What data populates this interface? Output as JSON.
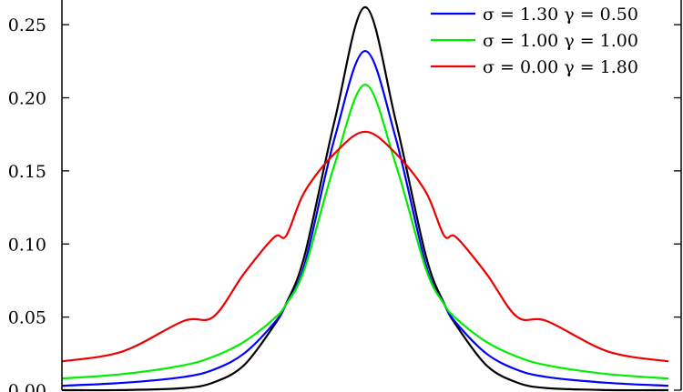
{
  "chart_data": {
    "type": "line",
    "title": "",
    "xlabel": "",
    "ylabel": "",
    "ylim": [
      0,
      0.27
    ],
    "xlim": [
      -5,
      5
    ],
    "grid": false,
    "legend_position": "top-right",
    "y_ticks": [
      "0.00",
      "0.05",
      "0.10",
      "0.15",
      "0.20",
      "0.25"
    ],
    "y_tick_values": [
      0,
      0.05,
      0.1,
      0.15,
      0.2,
      0.25
    ],
    "series": [
      {
        "legend": "",
        "color": "#000000",
        "peak": 0.262,
        "x": [
          -5,
          -4,
          -3,
          -2.5,
          -2,
          -1.5,
          -1.3,
          -1,
          -0.5,
          0,
          0.5,
          1,
          1.3,
          1.5,
          2,
          2.5,
          3,
          4,
          5
        ],
        "y": [
          0.0,
          0.0001,
          0.0014,
          0.0053,
          0.017,
          0.0445,
          0.0595,
          0.092,
          0.185,
          0.262,
          0.185,
          0.092,
          0.0595,
          0.0445,
          0.017,
          0.0053,
          0.0014,
          0.0001,
          0.0
        ]
      },
      {
        "legend": "σ = 1.30   γ = 0.50",
        "color": "#0000ff",
        "x": [
          -5,
          -4,
          -3,
          -2.5,
          -2,
          -1.5,
          -1.3,
          -1,
          -0.5,
          0,
          0.5,
          1,
          1.3,
          1.5,
          2,
          2.5,
          3,
          4,
          5
        ],
        "y": [
          0.003,
          0.005,
          0.009,
          0.014,
          0.025,
          0.046,
          0.059,
          0.086,
          0.173,
          0.232,
          0.173,
          0.086,
          0.059,
          0.046,
          0.025,
          0.014,
          0.009,
          0.005,
          0.003
        ]
      },
      {
        "legend": "σ = 1.00   γ = 1.00",
        "color": "#00ee00",
        "x": [
          -5,
          -4,
          -3,
          -2.5,
          -2,
          -1.5,
          -1.3,
          -1,
          -0.5,
          0,
          0.5,
          1,
          1.3,
          1.5,
          2,
          2.5,
          3,
          4,
          5
        ],
        "y": [
          0.008,
          0.011,
          0.017,
          0.023,
          0.033,
          0.049,
          0.059,
          0.083,
          0.155,
          0.209,
          0.155,
          0.083,
          0.059,
          0.049,
          0.033,
          0.023,
          0.017,
          0.011,
          0.008
        ]
      },
      {
        "legend": "σ = 0.00   γ = 1.80",
        "color": "#ee0000",
        "x": [
          -5,
          -4,
          -3,
          -2.5,
          -2,
          -1.5,
          -1.3,
          -1,
          -0.5,
          0,
          0.5,
          1,
          1.3,
          1.5,
          2,
          2.5,
          3,
          4,
          5
        ],
        "y": [
          0.0197,
          0.0265,
          0.0472,
          0.0503,
          0.0796,
          0.1046,
          0.1058,
          0.1356,
          0.1621,
          0.1768,
          0.1621,
          0.1356,
          0.1058,
          0.1046,
          0.0796,
          0.0503,
          0.0472,
          0.0265,
          0.0197
        ]
      }
    ]
  }
}
